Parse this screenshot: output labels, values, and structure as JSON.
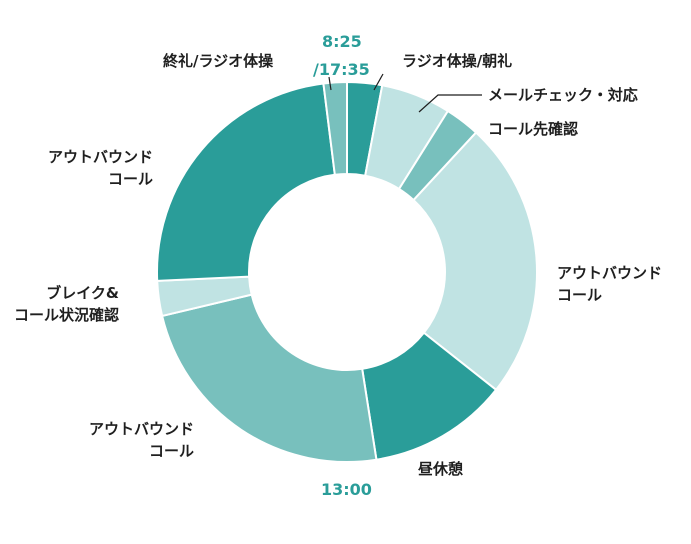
{
  "chart_data": {
    "type": "pie",
    "style": "donut",
    "unit": "minutes",
    "categories": [
      "ラジオ体操/朝礼",
      "メールチェック・対応",
      "コール先確認",
      "アウトバウンド\nコール",
      "昼休憩",
      "アウトバウンド\nコール",
      "ブレイク&\nコール状況確認",
      "アウトバウンド\nコール",
      "終礼/ラジオ体操"
    ],
    "values": [
      15,
      30,
      15,
      120,
      60,
      120,
      15,
      120,
      10
    ],
    "colors": [
      "#2a9d99",
      "#c0e3e3",
      "#78c0bd",
      "#c0e3e3",
      "#2a9d99",
      "#78c0bd",
      "#c0e3e3",
      "#2a9d99",
      "#78c0bd"
    ],
    "annotations": {
      "start_time": "8:25",
      "end_time": "/17:35",
      "midday_time": "13:00"
    },
    "time_color": "#2a9d99"
  }
}
